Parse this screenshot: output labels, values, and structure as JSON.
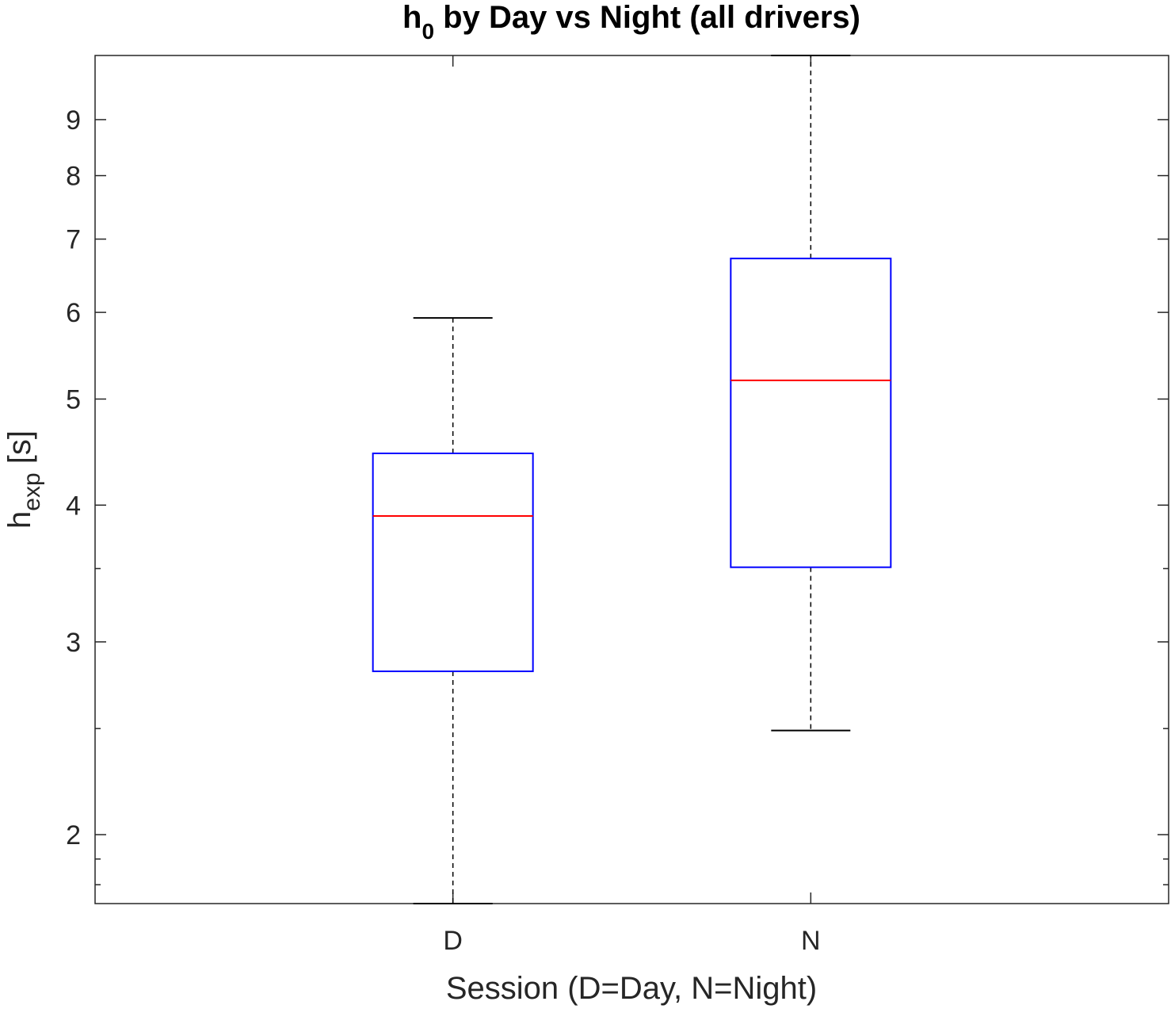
{
  "chart_data": {
    "type": "box",
    "title": {
      "main": "h",
      "sub": "0",
      "rest": " by Day vs Night (all drivers)"
    },
    "xlabel": "Session (D=Day, N=Night)",
    "ylabel": {
      "main": "h",
      "sub": "exp",
      "rest": "  [s]"
    },
    "yscale": "log",
    "ylim": [
      1.73,
      10.3
    ],
    "yticks": [
      2,
      3,
      4,
      5,
      6,
      7,
      8,
      9
    ],
    "yticklabels": [
      "2",
      "3",
      "4",
      "5",
      "6",
      "7",
      "8",
      "9"
    ],
    "yminorticks": [
      1.8,
      1.9,
      2.5,
      3.5
    ],
    "categories": [
      "D",
      "N"
    ],
    "boxes": [
      {
        "category": "D",
        "whisker_low": 1.73,
        "q1": 2.82,
        "median": 3.91,
        "q3": 4.46,
        "whisker_high": 5.93
      },
      {
        "category": "N",
        "whisker_low": 2.49,
        "q1": 3.51,
        "median": 5.2,
        "q3": 6.72,
        "whisker_high": 10.3
      }
    ],
    "colors": {
      "box": "#0000ff",
      "median": "#ff0000",
      "whisker": "#000000",
      "axis": "#262626"
    },
    "grid": false,
    "legend": "none"
  }
}
